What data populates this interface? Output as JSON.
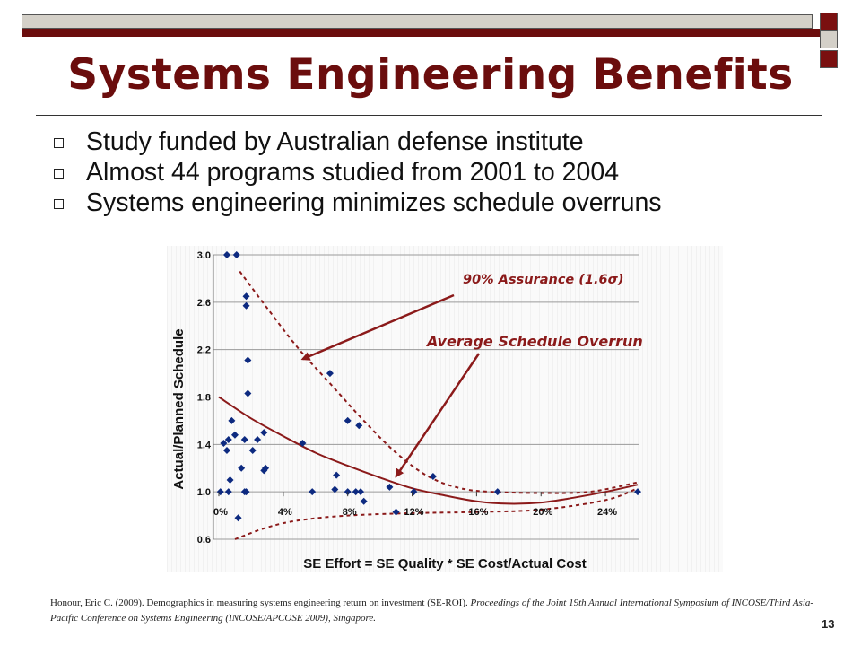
{
  "slide": {
    "title": "Systems Engineering Benefits",
    "bullets": [
      "Study funded by Australian defense institute",
      "Almost 44 programs studied from 2001 to 2004",
      "Systems engineering minimizes schedule overruns"
    ],
    "citation_plain": "Honour, Eric C. (2009). Demographics in measuring systems engineering return on investment (SE-ROI).",
    "citation_italic": "Proceedings of the Joint 19th Annual International Symposium of INCOSE/Third Asia-Pacific Conference on Systems Engineering (INCOSE/APCOSE 2009), Singapore.",
    "page_number": "13",
    "colors": {
      "title": "#6b0d0d",
      "marker": "#0d2a80",
      "curve": "#8b1a1a"
    }
  },
  "chart_data": {
    "type": "scatter",
    "title": "",
    "xlabel": "SE Effort = SE Quality * SE Cost/Actual Cost",
    "ylabel": "Actual/Planned Schedule",
    "xlim": [
      0,
      26
    ],
    "ylim": [
      0.6,
      3.0
    ],
    "x_ticks": [
      0,
      4,
      8,
      12,
      16,
      20,
      24
    ],
    "x_tick_labels": [
      "0%",
      "4%",
      "8%",
      "12%",
      "16%",
      "20%",
      "24%"
    ],
    "y_ticks": [
      0.6,
      1.0,
      1.4,
      1.8,
      2.2,
      2.6,
      3.0
    ],
    "y_tick_labels": [
      "0.6",
      "1.0",
      "1.4",
      "1.8",
      "2.2",
      "2.6",
      "3.0"
    ],
    "grid": "horizontal",
    "annotations": [
      {
        "text": "90% Assurance (1.6σ)",
        "arrow_to": [
          5.2,
          2.12
        ]
      },
      {
        "text": "Average Schedule Overrun",
        "arrow_to": [
          11,
          1.13
        ]
      }
    ],
    "series": [
      {
        "points": [
          [
            0.1,
            1.0
          ],
          [
            0.3,
            1.41
          ],
          [
            0.5,
            3.0
          ],
          [
            0.5,
            1.35
          ],
          [
            0.6,
            1.44
          ],
          [
            0.6,
            1.0
          ],
          [
            0.7,
            1.1
          ],
          [
            0.8,
            1.6
          ],
          [
            1.0,
            1.48
          ],
          [
            1.1,
            3.0
          ],
          [
            1.2,
            0.78
          ],
          [
            1.4,
            1.2
          ],
          [
            1.6,
            1.44
          ],
          [
            1.6,
            1.0
          ],
          [
            1.7,
            2.65
          ],
          [
            1.7,
            2.57
          ],
          [
            1.7,
            1.0
          ],
          [
            1.8,
            2.11
          ],
          [
            1.8,
            1.83
          ],
          [
            2.1,
            1.35
          ],
          [
            2.4,
            1.44
          ],
          [
            2.8,
            1.18
          ],
          [
            2.8,
            1.5
          ],
          [
            2.9,
            1.2
          ],
          [
            5.2,
            1.41
          ],
          [
            5.8,
            1.0
          ],
          [
            6.9,
            2.0
          ],
          [
            7.2,
            1.02
          ],
          [
            7.3,
            1.14
          ],
          [
            8.0,
            1.0
          ],
          [
            8.0,
            1.6
          ],
          [
            8.5,
            1.0
          ],
          [
            8.7,
            1.56
          ],
          [
            8.8,
            1.0
          ],
          [
            9.0,
            0.92
          ],
          [
            10.6,
            1.04
          ],
          [
            11.0,
            0.83
          ],
          [
            12.1,
            1.0
          ],
          [
            13.3,
            1.13
          ],
          [
            17.3,
            1.0
          ],
          [
            26.0,
            1.0
          ]
        ]
      }
    ],
    "curves": [
      {
        "style": "solid",
        "x": [
          0,
          2,
          4,
          6,
          8,
          10,
          12,
          14,
          16,
          18,
          20,
          22,
          24,
          26
        ],
        "y": [
          1.8,
          1.62,
          1.47,
          1.33,
          1.22,
          1.12,
          1.03,
          0.97,
          0.92,
          0.9,
          0.91,
          0.95,
          1.0,
          1.06
        ]
      },
      {
        "style": "dashed",
        "x": [
          1.3,
          3,
          5,
          7,
          9,
          11,
          13,
          15,
          17,
          20,
          23,
          26
        ],
        "y": [
          2.86,
          2.55,
          2.2,
          1.9,
          1.6,
          1.33,
          1.13,
          1.03,
          1.0,
          0.99,
          1.0,
          1.08
        ]
      },
      {
        "style": "dashed",
        "x": [
          1.0,
          3,
          5,
          8,
          12,
          16,
          20,
          24,
          26
        ],
        "y": [
          0.6,
          0.7,
          0.76,
          0.8,
          0.82,
          0.83,
          0.85,
          0.93,
          1.03
        ]
      }
    ]
  }
}
